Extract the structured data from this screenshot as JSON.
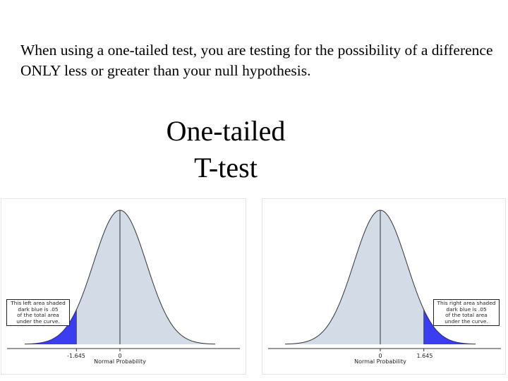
{
  "slide": {
    "intro_text": "When using a one-tailed test, you are testing for the possibility of a difference ONLY less or greater than your null hypothesis.",
    "title_line1": "One-tailed",
    "title_line2": "T-test"
  },
  "colors": {
    "curve_fill": "#d3dce6",
    "tail_fill": "#3a3ef0",
    "outline": "#333333"
  },
  "chart_data": [
    {
      "type": "area",
      "name": "left-tail",
      "xlabel": "Normal Probability",
      "xticks": [
        "-1.645",
        "0"
      ],
      "tail": "left",
      "critical_value": -1.645,
      "xlim": [
        -3.6,
        3.6
      ],
      "annotation": "This left area shaded\ndark blue is .05\nof the total area\nunder the curve."
    },
    {
      "type": "area",
      "name": "right-tail",
      "xlabel": "Normal Probability",
      "xticks": [
        "0",
        "1.645"
      ],
      "tail": "right",
      "critical_value": 1.645,
      "xlim": [
        -3.6,
        3.6
      ],
      "annotation": "This right area shaded\ndark blue is .05\nof the total area\nunder the curve."
    }
  ]
}
